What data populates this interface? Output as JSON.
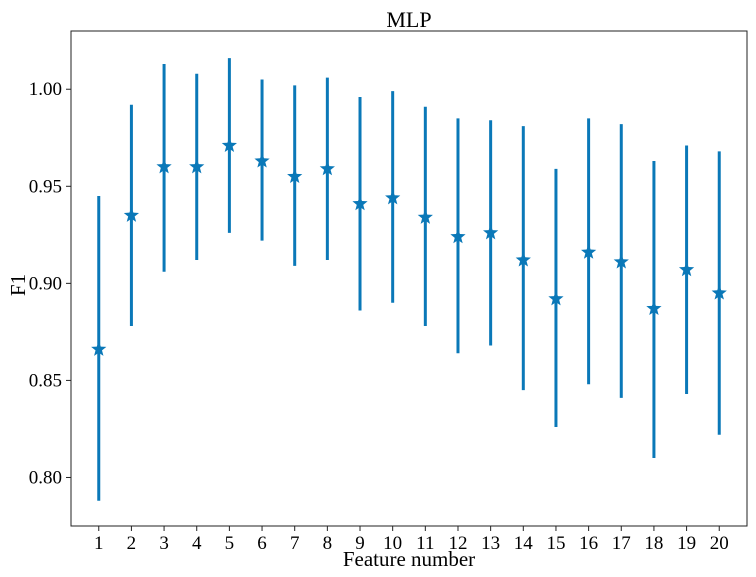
{
  "chart_data": {
    "type": "scatter",
    "title": "MLP",
    "xlabel": "Feature number",
    "ylabel": "F1",
    "ylim": [
      0.775,
      1.03
    ],
    "xlim": [
      0.15,
      20.85
    ],
    "grid": false,
    "marker": "star",
    "color": "#0a78b8",
    "x": [
      1,
      2,
      3,
      4,
      5,
      6,
      7,
      8,
      9,
      10,
      11,
      12,
      13,
      14,
      15,
      16,
      17,
      18,
      19,
      20
    ],
    "x_tick_labels": [
      "1",
      "2",
      "3",
      "4",
      "5",
      "6",
      "7",
      "8",
      "9",
      "10",
      "11",
      "12",
      "13",
      "14",
      "15",
      "16",
      "17",
      "18",
      "19",
      "20"
    ],
    "y_ticks": [
      0.8,
      0.85,
      0.9,
      0.95,
      1.0
    ],
    "y_tick_labels": [
      "0.80",
      "0.85",
      "0.90",
      "0.95",
      "1.00"
    ],
    "series": [
      {
        "values": [
          0.866,
          0.935,
          0.96,
          0.96,
          0.971,
          0.963,
          0.955,
          0.959,
          0.941,
          0.944,
          0.934,
          0.924,
          0.926,
          0.912,
          0.892,
          0.916,
          0.911,
          0.887,
          0.907,
          0.895
        ],
        "err_low": [
          0.788,
          0.878,
          0.906,
          0.912,
          0.926,
          0.922,
          0.909,
          0.912,
          0.886,
          0.89,
          0.878,
          0.864,
          0.868,
          0.845,
          0.826,
          0.848,
          0.841,
          0.81,
          0.843,
          0.822
        ],
        "err_high": [
          0.945,
          0.992,
          1.013,
          1.008,
          1.016,
          1.005,
          1.002,
          1.006,
          0.996,
          0.999,
          0.991,
          0.985,
          0.984,
          0.981,
          0.959,
          0.985,
          0.982,
          0.963,
          0.971,
          0.968
        ]
      }
    ]
  }
}
